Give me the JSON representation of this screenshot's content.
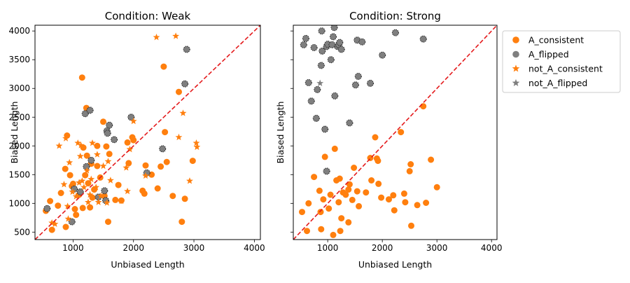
{
  "colors": {
    "orange": "#ff7f0e",
    "gray": "#7f7f7f",
    "refline": "#e41a1c",
    "flipped_edge": "#222222"
  },
  "legend": {
    "placement": "right, outside plot area (upper)",
    "items": [
      {
        "label": "A_consistent",
        "marker": "circle",
        "color": "#ff7f0e"
      },
      {
        "label": "A_flipped",
        "marker": "circle",
        "color": "#7f7f7f"
      },
      {
        "label": "not_A_consistent",
        "marker": "star",
        "color": "#ff7f0e"
      },
      {
        "label": "not_A_flipped",
        "marker": "star",
        "color": "#7f7f7f"
      }
    ]
  },
  "chart_data": [
    {
      "type": "scatter",
      "title": "Condition: Weak",
      "xlabel": "Unbiased Length",
      "ylabel": "Biased Length",
      "xlim": [
        370,
        4100
      ],
      "ylim": [
        370,
        4100
      ],
      "xticks": [
        1000,
        2000,
        3000,
        4000
      ],
      "yticks": [
        500,
        1000,
        1500,
        2000,
        2500,
        3000,
        3500,
        4000
      ],
      "grid": false,
      "reference_line": "y = x",
      "series": [
        {
          "name": "A_consistent",
          "marker": "circle",
          "points": [
            [
              550,
              870
            ],
            [
              620,
              1040
            ],
            [
              650,
              540
            ],
            [
              750,
              960
            ],
            [
              800,
              1180
            ],
            [
              870,
              1600
            ],
            [
              880,
              590
            ],
            [
              900,
              2180
            ],
            [
              950,
              1490
            ],
            [
              980,
              1300
            ],
            [
              1000,
              1340
            ],
            [
              1030,
              900
            ],
            [
              1050,
              800
            ],
            [
              1100,
              1150
            ],
            [
              1150,
              3190
            ],
            [
              1160,
              920
            ],
            [
              1170,
              1970
            ],
            [
              1200,
              1490
            ],
            [
              1220,
              2660
            ],
            [
              1230,
              1830
            ],
            [
              1250,
              1350
            ],
            [
              1280,
              930
            ],
            [
              1300,
              1690
            ],
            [
              1320,
              1100
            ],
            [
              1350,
              1240
            ],
            [
              1400,
              1650
            ],
            [
              1400,
              2000
            ],
            [
              1450,
              1450
            ],
            [
              1500,
              2420
            ],
            [
              1520,
              1130
            ],
            [
              1550,
              1990
            ],
            [
              1580,
              680
            ],
            [
              1600,
              1860
            ],
            [
              1700,
              1060
            ],
            [
              1750,
              1320
            ],
            [
              1800,
              1050
            ],
            [
              1900,
              2060
            ],
            [
              1920,
              1700
            ],
            [
              1980,
              2150
            ],
            [
              2000,
              2100
            ],
            [
              2150,
              1220
            ],
            [
              2180,
              1170
            ],
            [
              2200,
              1660
            ],
            [
              2300,
              1500
            ],
            [
              2400,
              1260
            ],
            [
              2450,
              1640
            ],
            [
              2500,
              3380
            ],
            [
              2520,
              2240
            ],
            [
              2550,
              1720
            ],
            [
              2650,
              1130
            ],
            [
              2750,
              2940
            ],
            [
              2800,
              680
            ],
            [
              2850,
              1080
            ],
            [
              2980,
              1740
            ]
          ]
        },
        {
          "name": "A_flipped",
          "marker": "circle",
          "points": [
            [
              570,
              910
            ],
            [
              980,
              680
            ],
            [
              1020,
              1250
            ],
            [
              1120,
              1200
            ],
            [
              1200,
              2560
            ],
            [
              1220,
              1640
            ],
            [
              1280,
              2620
            ],
            [
              1300,
              1750
            ],
            [
              1420,
              1110
            ],
            [
              1520,
              1220
            ],
            [
              1540,
              1050
            ],
            [
              1560,
              2260
            ],
            [
              1570,
              2220
            ],
            [
              1600,
              2360
            ],
            [
              1680,
              2110
            ],
            [
              1960,
              2500
            ],
            [
              2220,
              1530
            ],
            [
              2480,
              1950
            ],
            [
              2850,
              3080
            ],
            [
              2880,
              3680
            ]
          ]
        },
        {
          "name": "not_A_consistent",
          "marker": "star",
          "points": [
            [
              650,
              660
            ],
            [
              700,
              640
            ],
            [
              770,
              2000
            ],
            [
              850,
              1330
            ],
            [
              880,
              2130
            ],
            [
              910,
              950
            ],
            [
              920,
              730
            ],
            [
              940,
              1710
            ],
            [
              990,
              1200
            ],
            [
              1050,
              1120
            ],
            [
              1080,
              2050
            ],
            [
              1100,
              1360
            ],
            [
              1120,
              1820
            ],
            [
              1130,
              2010
            ],
            [
              1150,
              1390
            ],
            [
              1180,
              1280
            ],
            [
              1230,
              1570
            ],
            [
              1250,
              1020
            ],
            [
              1280,
              1150
            ],
            [
              1300,
              1420
            ],
            [
              1320,
              2050
            ],
            [
              1380,
              1280
            ],
            [
              1400,
              1850
            ],
            [
              1420,
              1020
            ],
            [
              1460,
              1130
            ],
            [
              1500,
              1650
            ],
            [
              1560,
              1010
            ],
            [
              1580,
              1730
            ],
            [
              1620,
              1400
            ],
            [
              1800,
              1040
            ],
            [
              1880,
              1620
            ],
            [
              1900,
              1210
            ],
            [
              1940,
              1940
            ],
            [
              2000,
              2430
            ],
            [
              2200,
              1480
            ],
            [
              2380,
              3890
            ],
            [
              2700,
              3910
            ],
            [
              2750,
              2150
            ],
            [
              2820,
              2570
            ],
            [
              2930,
              1390
            ],
            [
              3040,
              2050
            ],
            [
              3050,
              1980
            ]
          ]
        },
        {
          "name": "not_A_flipped",
          "marker": "star",
          "points": []
        }
      ]
    },
    {
      "type": "scatter",
      "title": "Condition: Strong",
      "xlabel": "Unbiased Length",
      "ylabel": "Biased Length",
      "xlim": [
        370,
        4100
      ],
      "ylim": [
        370,
        4100
      ],
      "xticks": [
        1000,
        2000,
        3000,
        4000
      ],
      "yticks": [
        500,
        1000,
        1500,
        2000,
        2500,
        3000,
        3500,
        4000
      ],
      "grid": false,
      "reference_line": "y = x",
      "series": [
        {
          "name": "A_consistent",
          "marker": "circle",
          "points": [
            [
              530,
              850
            ],
            [
              620,
              520
            ],
            [
              650,
              1000
            ],
            [
              750,
              1460
            ],
            [
              850,
              1220
            ],
            [
              870,
              850
            ],
            [
              880,
              550
            ],
            [
              920,
              1070
            ],
            [
              950,
              1810
            ],
            [
              1020,
              910
            ],
            [
              1050,
              1150
            ],
            [
              1100,
              450
            ],
            [
              1130,
              1950
            ],
            [
              1160,
              1400
            ],
            [
              1200,
              1020
            ],
            [
              1220,
              1430
            ],
            [
              1230,
              520
            ],
            [
              1250,
              740
            ],
            [
              1280,
              1190
            ],
            [
              1330,
              1150
            ],
            [
              1380,
              1240
            ],
            [
              1380,
              670
            ],
            [
              1400,
              1330
            ],
            [
              1450,
              1060
            ],
            [
              1480,
              1620
            ],
            [
              1540,
              1210
            ],
            [
              1570,
              950
            ],
            [
              1700,
              1190
            ],
            [
              1780,
              1790
            ],
            [
              1800,
              1400
            ],
            [
              1870,
              2150
            ],
            [
              1900,
              1780
            ],
            [
              1920,
              1740
            ],
            [
              1930,
              1340
            ],
            [
              1980,
              1100
            ],
            [
              2120,
              1070
            ],
            [
              2200,
              1140
            ],
            [
              2220,
              880
            ],
            [
              2340,
              2240
            ],
            [
              2400,
              1170
            ],
            [
              2420,
              1020
            ],
            [
              2500,
              1560
            ],
            [
              2520,
              1680
            ],
            [
              2530,
              610
            ],
            [
              2640,
              970
            ],
            [
              2750,
              2690
            ],
            [
              2800,
              1010
            ],
            [
              2890,
              1760
            ],
            [
              3000,
              1280
            ]
          ]
        },
        {
          "name": "A_flipped",
          "marker": "circle",
          "points": [
            [
              560,
              3760
            ],
            [
              600,
              3870
            ],
            [
              650,
              3100
            ],
            [
              700,
              2780
            ],
            [
              750,
              3710
            ],
            [
              790,
              2480
            ],
            [
              810,
              2980
            ],
            [
              880,
              3400
            ],
            [
              890,
              4000
            ],
            [
              900,
              3650
            ],
            [
              950,
              2290
            ],
            [
              980,
              3730
            ],
            [
              1000,
              3770
            ],
            [
              1060,
              3500
            ],
            [
              1080,
              3760
            ],
            [
              1100,
              3900
            ],
            [
              1120,
              4060
            ],
            [
              1130,
              2870
            ],
            [
              1180,
              3730
            ],
            [
              1200,
              3760
            ],
            [
              1220,
              3800
            ],
            [
              1250,
              3680
            ],
            [
              1400,
              2400
            ],
            [
              1510,
              3060
            ],
            [
              1540,
              3840
            ],
            [
              1560,
              3210
            ],
            [
              1630,
              3810
            ],
            [
              1780,
              3090
            ],
            [
              2000,
              3580
            ],
            [
              2240,
              3970
            ],
            [
              2750,
              3860
            ],
            [
              980,
              1560
            ]
          ]
        },
        {
          "name": "not_A_consistent",
          "marker": "star",
          "points": []
        },
        {
          "name": "not_A_flipped",
          "marker": "star",
          "points": [
            [
              860,
              3090
            ]
          ]
        }
      ]
    }
  ]
}
